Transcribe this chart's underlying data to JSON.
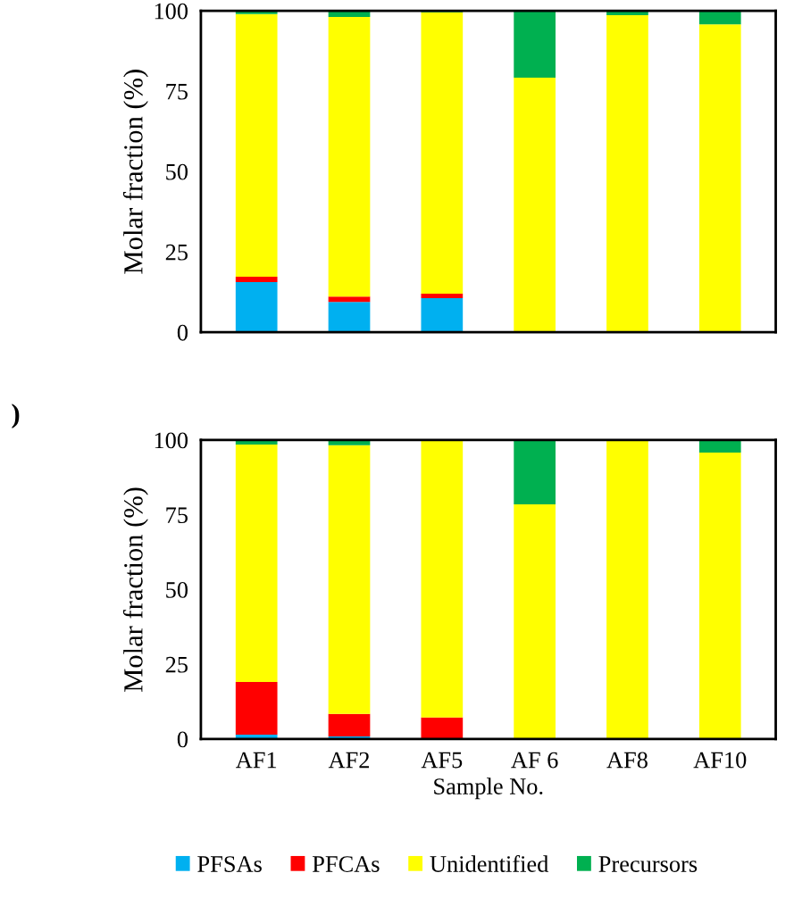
{
  "chart_data": [
    {
      "type": "bar",
      "stacked": true,
      "ylabel": "Molar fraction (%)",
      "categories": [
        null,
        null,
        null,
        null,
        null,
        null
      ],
      "ylim": [
        0,
        100
      ],
      "yticks": [
        0,
        25,
        50,
        75,
        100
      ],
      "grid": false,
      "series": [
        {
          "color": "#00b0f0",
          "values": [
            15.6,
            9.4,
            10.6,
            0,
            0,
            0
          ]
        },
        {
          "color": "#ff0000",
          "values": [
            1.7,
            1.7,
            1.4,
            0,
            0,
            0
          ]
        },
        {
          "color": "#ffff00",
          "values": [
            81.7,
            87.0,
            87.5,
            79.2,
            98.6,
            95.8
          ]
        },
        {
          "color": "#00b050",
          "values": [
            1.0,
            1.9,
            0.5,
            20.8,
            1.4,
            4.2
          ]
        }
      ]
    },
    {
      "type": "bar",
      "stacked": true,
      "ylabel": "Molar fraction (%)",
      "xlabel": "Sample No.",
      "categories": [
        "AF1",
        "AF2",
        "AF5",
        "AF 6",
        "AF8",
        "AF10"
      ],
      "ylim": [
        0,
        100
      ],
      "yticks": [
        0,
        25,
        50,
        75,
        100
      ],
      "grid": false,
      "legend": "bottom",
      "annotations": [
        ")"
      ],
      "series": [
        {
          "name": "PFSAs",
          "color": "#00b0f0",
          "values": [
            1.5,
            0.9,
            0,
            0,
            0,
            0
          ]
        },
        {
          "name": "PFCAs",
          "color": "#ff0000",
          "values": [
            17.6,
            7.5,
            7.2,
            0,
            0,
            0
          ]
        },
        {
          "name": "Unidentified",
          "color": "#ffff00",
          "values": [
            79.4,
            89.9,
            92.5,
            78.5,
            99.7,
            95.8
          ]
        },
        {
          "name": "Precursors",
          "color": "#00b050",
          "values": [
            1.5,
            1.7,
            0.3,
            21.5,
            0.3,
            4.2
          ]
        }
      ]
    }
  ]
}
